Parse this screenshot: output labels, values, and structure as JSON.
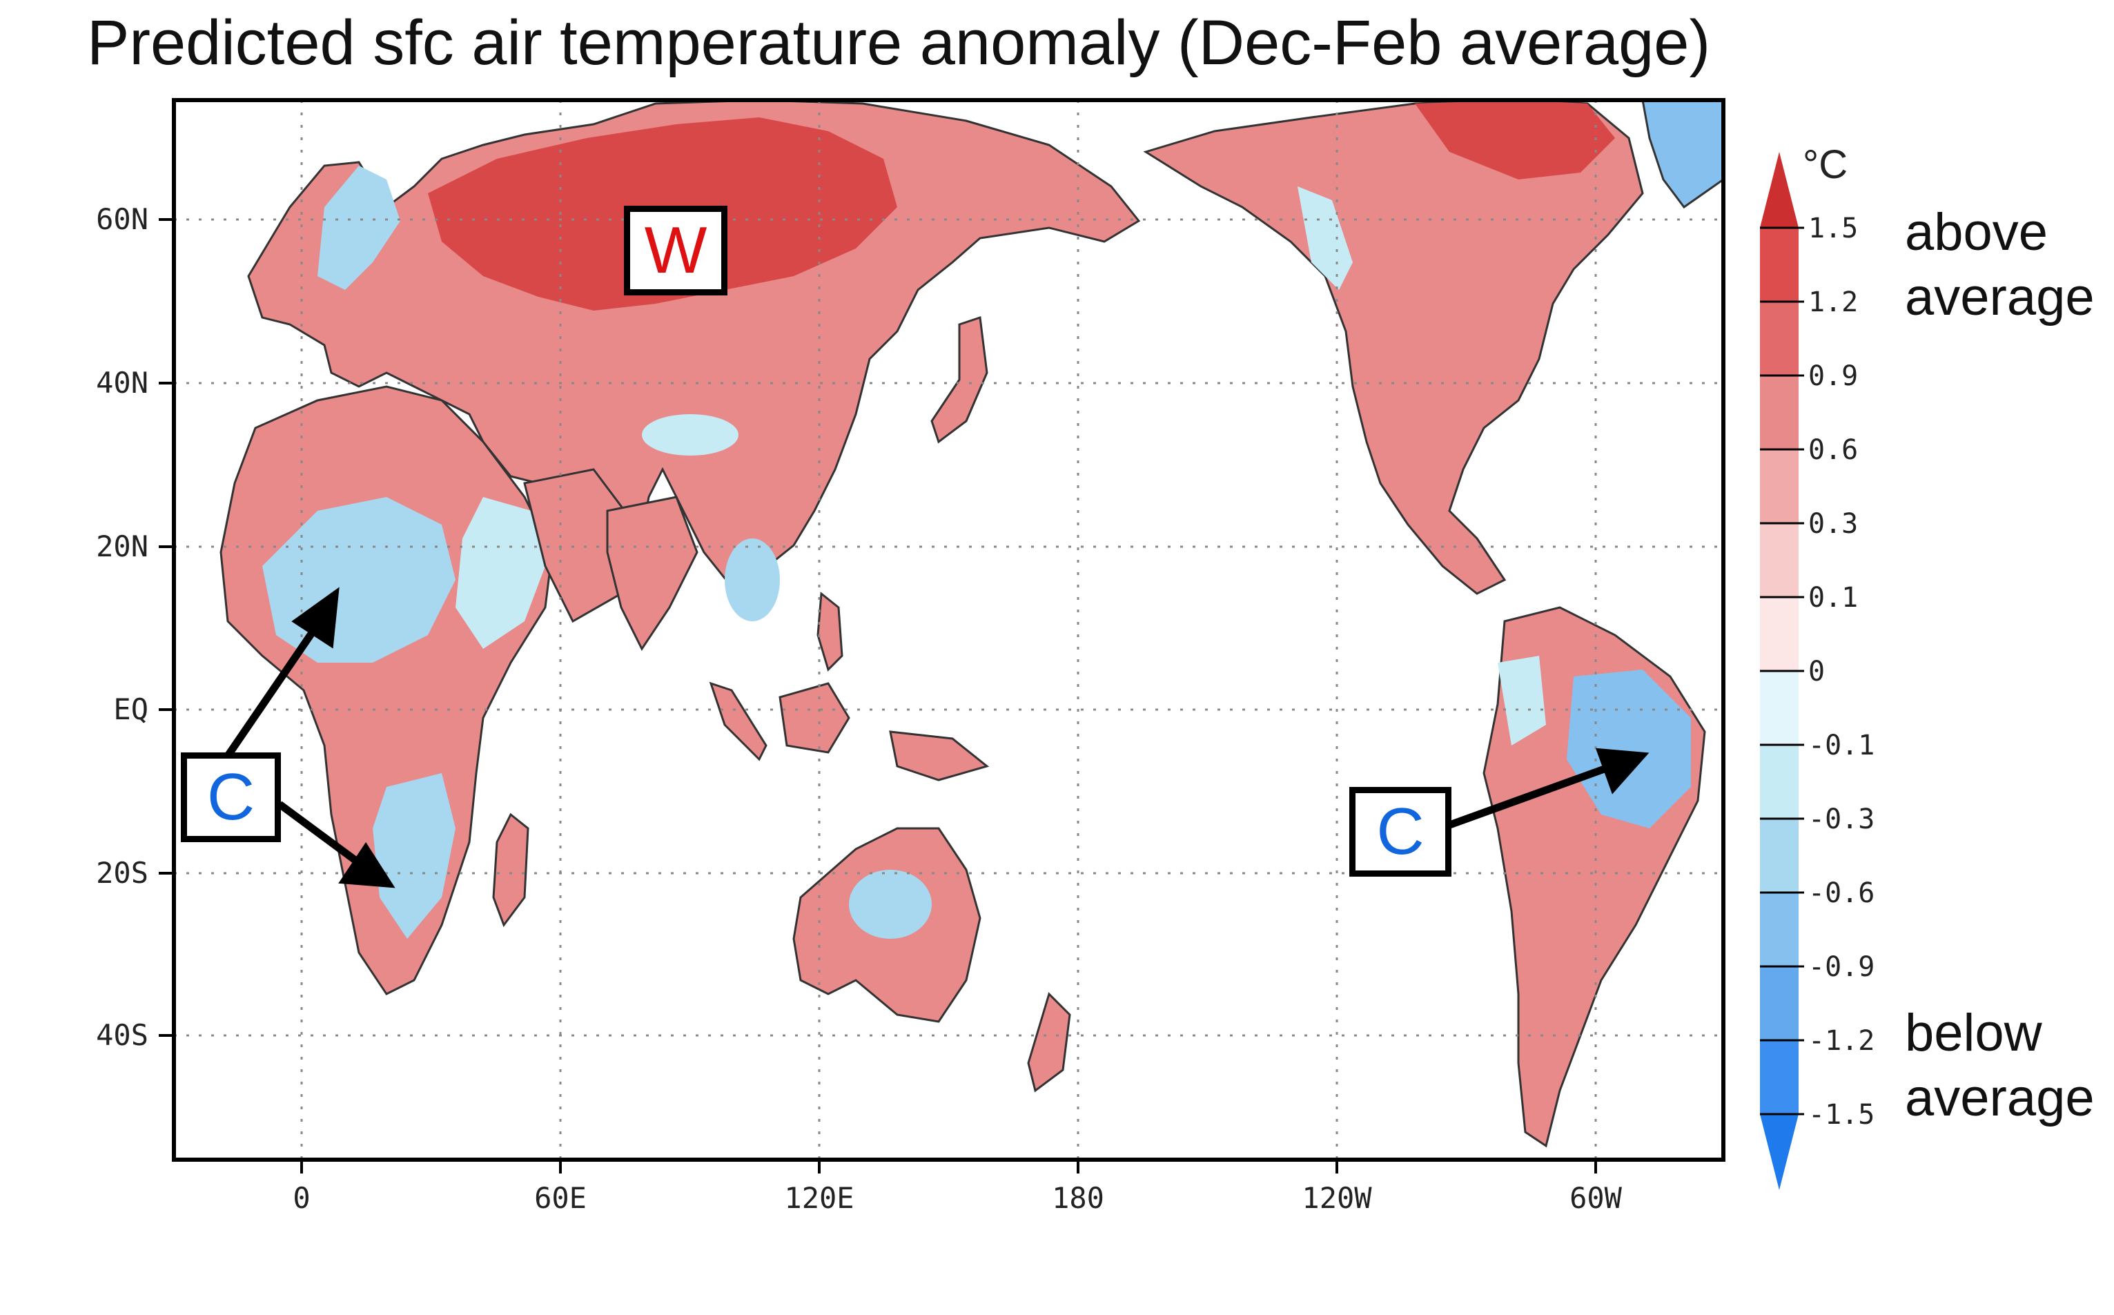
{
  "title": "Predicted sfc air temperature anomaly (Dec-Feb average)",
  "map": {
    "x_ticks": [
      "0",
      "60E",
      "120E",
      "180",
      "120W",
      "60W"
    ],
    "y_ticks": [
      "60N",
      "40N",
      "20N",
      "EQ",
      "20S",
      "40S"
    ],
    "gridlines": true
  },
  "colorbar": {
    "unit": "°C",
    "levels": [
      "1.5",
      "1.2",
      "0.9",
      "0.6",
      "0.3",
      "0.1",
      "0",
      "-0.1",
      "-0.3",
      "-0.6",
      "-0.9",
      "-1.2",
      "-1.5"
    ],
    "colors": [
      "#cc2f2f",
      "#dd4d4d",
      "#e26a6a",
      "#e88a8a",
      "#f0aaaa",
      "#f8cbcb",
      "#fde6e6",
      "#e2f6fb",
      "#c6ebf5",
      "#a7d8f0",
      "#86c0ee",
      "#64a8ee",
      "#3c8ff0",
      "#1f7aeb"
    ],
    "above_label": [
      "above",
      "average"
    ],
    "below_label": [
      "below",
      "average"
    ]
  },
  "annotations": {
    "warm_label": "W",
    "cold_label": "C",
    "warm_color": "#dd1111",
    "cold_color": "#1166dd"
  },
  "colors": {
    "warm": "#e88a8a",
    "strong_warm": "#d84848",
    "cool": "#a7d8f0"
  }
}
